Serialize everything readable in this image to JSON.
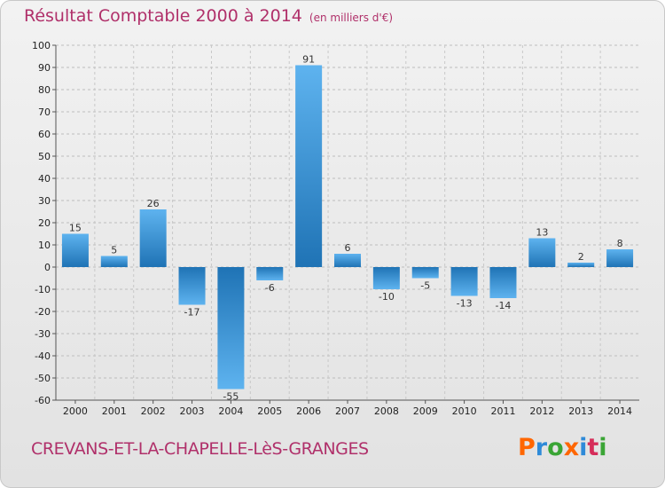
{
  "title": "Résultat Comptable 2000 à 2014",
  "subtitle": "(en milliers d'€)",
  "commune": "CREVANS-ET-LA-CHAPELLE-LèS-GRANGES",
  "logo": "Proxiti",
  "logo_colors": [
    "#ff6600",
    "#2e8ad8",
    "#3aa535",
    "#ff6600",
    "#2e8ad8",
    "#d62d5a",
    "#3aa535"
  ],
  "colors": {
    "bar_top": "#5eb3ef",
    "bar_bottom": "#1f73b5",
    "title": "#b0306a"
  },
  "chart_data": {
    "type": "bar",
    "categories": [
      "2000",
      "2001",
      "2002",
      "2003",
      "2004",
      "2005",
      "2006",
      "2007",
      "2008",
      "2009",
      "2010",
      "2011",
      "2012",
      "2013",
      "2014"
    ],
    "values": [
      15,
      5,
      26,
      -17,
      -55,
      -6,
      91,
      6,
      -10,
      -5,
      -13,
      -14,
      13,
      2,
      8
    ],
    "value_labels": [
      "15",
      "5",
      "26",
      "-17",
      "-55",
      "-6",
      "91",
      "6",
      "-10",
      "-5",
      "-13",
      "-14",
      "13",
      "2",
      "8"
    ],
    "y_ticks": [
      100,
      90,
      80,
      70,
      60,
      50,
      40,
      30,
      20,
      10,
      0,
      -10,
      -20,
      -30,
      -40,
      -50,
      -60
    ],
    "y_tick_labels": [
      "100",
      "90",
      "80",
      "70",
      "60",
      "50",
      "40",
      "30",
      "20",
      "10",
      "0",
      "-10",
      "-20",
      "-30",
      "-40",
      "-50",
      "-60"
    ],
    "ylim": [
      -60,
      100
    ],
    "grid": true
  }
}
